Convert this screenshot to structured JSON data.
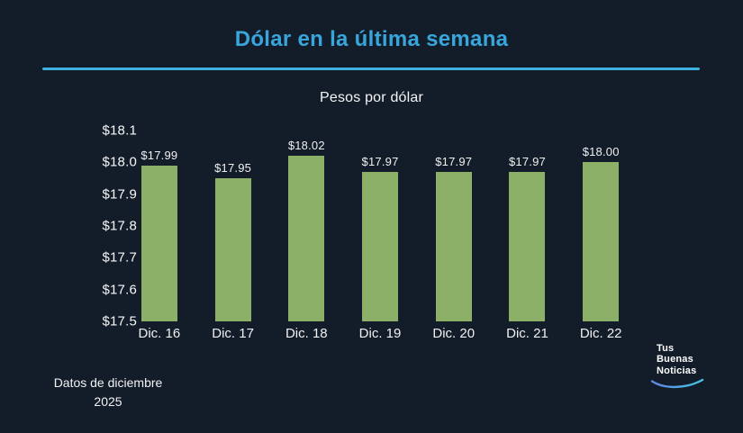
{
  "page": {
    "background": "#131d2a",
    "accent_blue": "#38a6dc",
    "bar_green": "#8db069"
  },
  "header": {
    "title": "Dólar en la última semana"
  },
  "chart_data": {
    "type": "bar",
    "title": "Pesos por dólar",
    "categories": [
      "Dic. 16",
      "Dic. 17",
      "Dic. 18",
      "Dic. 19",
      "Dic. 20",
      "Dic. 21",
      "Dic. 22"
    ],
    "values": [
      17.99,
      17.95,
      18.02,
      17.97,
      17.97,
      17.97,
      18.0
    ],
    "value_labels": [
      "$17.99",
      "$17.95",
      "$18.02",
      "$17.97",
      "$17.97",
      "$17.97",
      "$18.00"
    ],
    "xlabel": "",
    "ylabel": "",
    "ylim": [
      17.5,
      18.1
    ],
    "yticks": [
      "$18.1",
      "$18.0",
      "$17.9",
      "$17.8",
      "$17.7",
      "$17.6",
      "$17.5"
    ],
    "grid": false,
    "legend": false,
    "bar_color": "#8db069"
  },
  "footer": {
    "note_line1": "Datos de diciembre",
    "note_line2": "2025"
  },
  "logo": {
    "line1": "Tus",
    "line2": "Buenas",
    "line3": "Noticias",
    "swoosh_color_start": "#5f86e0",
    "swoosh_color_end": "#45c6e4"
  }
}
